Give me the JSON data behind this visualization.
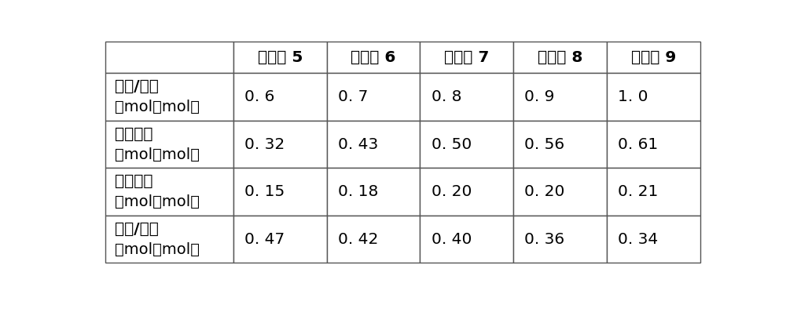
{
  "col_headers": [
    "",
    "实施例 5",
    "实施例 6",
    "实施例 7",
    "实施例 8",
    "实施例 9"
  ],
  "rows": [
    {
      "label_line1": "硒酸/淤粉",
      "label_line2": "（mol／mol）",
      "values": [
        "0. 6",
        "0. 7",
        "0. 8",
        "0. 9",
        "1. 0"
      ]
    },
    {
      "label_line1": "罧基含量",
      "label_line2": "（mol／mol）",
      "values": [
        "0. 32",
        "0. 43",
        "0. 50",
        "0. 56",
        "0. 61"
      ]
    },
    {
      "label_line1": "醉基含量",
      "label_line2": "（mol／mol）",
      "values": [
        "0. 15",
        "0. 18",
        "0. 20",
        "0. 20",
        "0. 21"
      ]
    },
    {
      "label_line1": "醉基/罧基",
      "label_line2": "（mol／mol）",
      "values": [
        "0. 47",
        "0. 42",
        "0. 40",
        "0. 36",
        "0. 34"
      ]
    }
  ],
  "background_color": "#ffffff",
  "line_color": "#555555",
  "text_color": "#000000",
  "font_size": 14.5
}
